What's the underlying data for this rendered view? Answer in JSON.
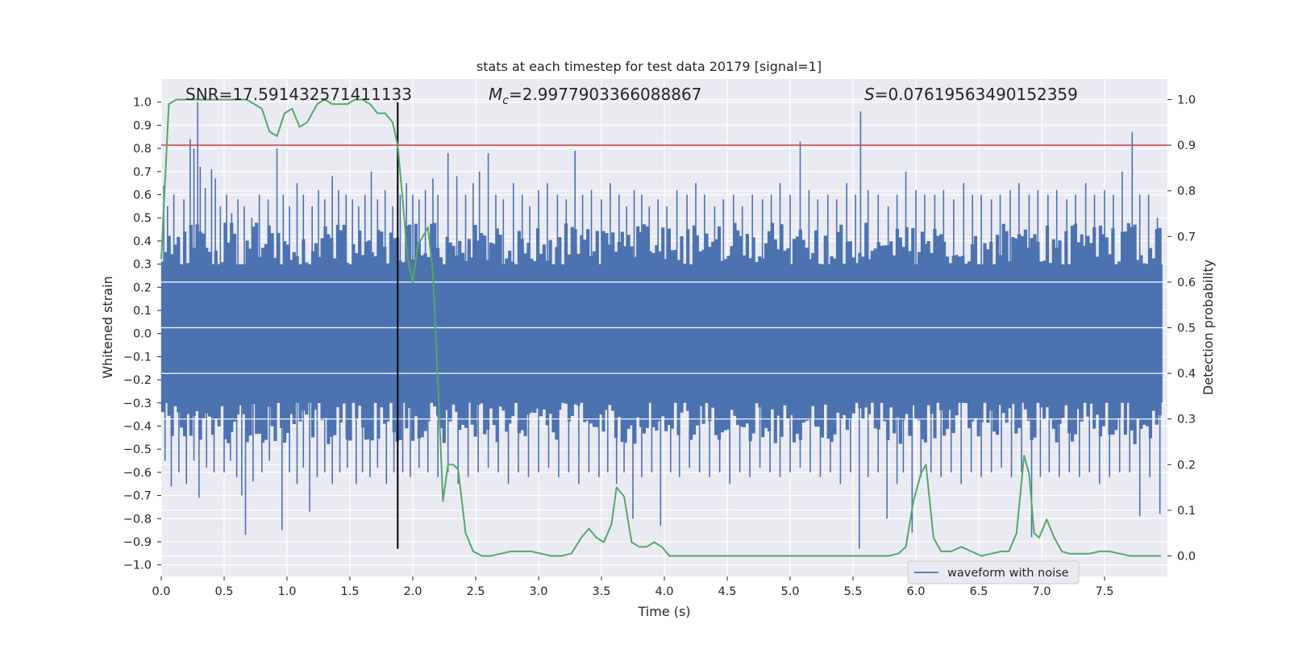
{
  "chart_data": {
    "type": "line",
    "title": "stats at each timestep for test data 20179 [signal=1]",
    "xlabel": "Time (s)",
    "ylabel": "Whitened strain",
    "y2label": "Detection probability",
    "xlim": [
      0,
      8
    ],
    "ylim": [
      -1.05,
      1.1
    ],
    "y2lim": [
      -0.045,
      1.045
    ],
    "x_ticks": [
      0.0,
      0.5,
      1.0,
      1.5,
      2.0,
      2.5,
      3.0,
      3.5,
      4.0,
      4.5,
      5.0,
      5.5,
      6.0,
      6.5,
      7.0,
      7.5
    ],
    "x_tick_labels": [
      "0.0",
      "0.5",
      "1.0",
      "1.5",
      "2.0",
      "2.5",
      "3.0",
      "3.5",
      "4.0",
      "4.5",
      "5.0",
      "5.5",
      "6.0",
      "6.5",
      "7.0",
      "7.5"
    ],
    "y_ticks": [
      -1.0,
      -0.9,
      -0.8,
      -0.7,
      -0.6,
      -0.5,
      -0.4,
      -0.3,
      -0.2,
      -0.1,
      0.0,
      0.1,
      0.2,
      0.3,
      0.4,
      0.5,
      0.6,
      0.7,
      0.8,
      0.9,
      1.0
    ],
    "y_tick_labels": [
      "−1.0",
      "−0.9",
      "−0.8",
      "−0.7",
      "−0.6",
      "−0.5",
      "−0.4",
      "−0.3",
      "−0.2",
      "−0.1",
      "0.0",
      "0.1",
      "0.2",
      "0.3",
      "0.4",
      "0.5",
      "0.6",
      "0.7",
      "0.8",
      "0.9",
      "1.0"
    ],
    "y2_ticks": [
      0.0,
      0.1,
      0.2,
      0.3,
      0.4,
      0.5,
      0.6,
      0.7,
      0.8,
      0.9,
      1.0
    ],
    "y2_tick_labels": [
      "0.0",
      "0.1",
      "0.2",
      "0.3",
      "0.4",
      "0.5",
      "0.6",
      "0.7",
      "0.8",
      "0.9",
      "1.0"
    ],
    "grid": true,
    "legend": {
      "placement": "lower-right",
      "entries": [
        "waveform with noise"
      ]
    },
    "annotations": {
      "snr": "SNR=17.591432571411133",
      "mc_symbol": "M",
      "mc_sub": "c",
      "mc_value": "=2.9977903366088867",
      "s_symbol": "S",
      "s_value": "=0.07619563490152359"
    },
    "threshold_line_y2": 0.9,
    "merger_time": 1.88,
    "merger_line_y": [
      -0.93,
      1.0
    ],
    "waveform": {
      "name": "waveform with noise",
      "color": "#4c72b0",
      "spikes_up": [
        [
          0.02,
          0.64
        ],
        [
          0.05,
          0.55
        ],
        [
          0.1,
          0.6
        ],
        [
          0.18,
          0.58
        ],
        [
          0.23,
          0.84
        ],
        [
          0.26,
          0.8
        ],
        [
          0.29,
          1.0
        ],
        [
          0.31,
          0.72
        ],
        [
          0.35,
          0.63
        ],
        [
          0.4,
          0.71
        ],
        [
          0.43,
          0.67
        ],
        [
          0.47,
          0.55
        ],
        [
          0.52,
          0.6
        ],
        [
          0.56,
          0.52
        ],
        [
          0.61,
          0.58
        ],
        [
          0.66,
          0.55
        ],
        [
          0.72,
          0.5
        ],
        [
          0.78,
          0.6
        ],
        [
          0.85,
          0.58
        ],
        [
          0.92,
          0.8
        ],
        [
          0.97,
          0.6
        ],
        [
          1.02,
          0.55
        ],
        [
          1.08,
          0.65
        ],
        [
          1.13,
          0.6
        ],
        [
          1.2,
          0.55
        ],
        [
          1.25,
          0.62
        ],
        [
          1.3,
          0.58
        ],
        [
          1.36,
          0.68
        ],
        [
          1.41,
          0.62
        ],
        [
          1.47,
          0.6
        ],
        [
          1.52,
          0.58
        ],
        [
          1.57,
          0.55
        ],
        [
          1.62,
          0.6
        ],
        [
          1.67,
          0.7
        ],
        [
          1.72,
          0.58
        ],
        [
          1.78,
          0.62
        ],
        [
          1.84,
          0.55
        ],
        [
          1.9,
          0.6
        ],
        [
          1.95,
          0.65
        ],
        [
          2.0,
          0.6
        ],
        [
          2.05,
          0.58
        ],
        [
          2.1,
          0.62
        ],
        [
          2.16,
          0.67
        ],
        [
          2.2,
          0.6
        ],
        [
          2.28,
          0.78
        ],
        [
          2.35,
          0.68
        ],
        [
          2.42,
          0.6
        ],
        [
          2.48,
          0.65
        ],
        [
          2.53,
          0.7
        ],
        [
          2.6,
          0.78
        ],
        [
          2.66,
          0.6
        ],
        [
          2.72,
          0.58
        ],
        [
          2.8,
          0.65
        ],
        [
          2.87,
          0.6
        ],
        [
          2.93,
          0.55
        ],
        [
          3.0,
          0.62
        ],
        [
          3.07,
          0.65
        ],
        [
          3.15,
          0.6
        ],
        [
          3.22,
          0.58
        ],
        [
          3.29,
          0.79
        ],
        [
          3.35,
          0.6
        ],
        [
          3.42,
          0.62
        ],
        [
          3.5,
          0.58
        ],
        [
          3.57,
          0.65
        ],
        [
          3.64,
          0.6
        ],
        [
          3.7,
          0.55
        ],
        [
          3.76,
          0.62
        ],
        [
          3.82,
          0.6
        ],
        [
          3.88,
          0.55
        ],
        [
          3.95,
          0.58
        ],
        [
          4.02,
          0.55
        ],
        [
          4.1,
          0.62
        ],
        [
          4.18,
          0.6
        ],
        [
          4.25,
          0.65
        ],
        [
          4.32,
          0.6
        ],
        [
          4.4,
          0.55
        ],
        [
          4.47,
          0.58
        ],
        [
          4.55,
          0.6
        ],
        [
          4.62,
          0.55
        ],
        [
          4.7,
          0.6
        ],
        [
          4.78,
          0.58
        ],
        [
          4.85,
          0.6
        ],
        [
          4.92,
          0.65
        ],
        [
          5.0,
          0.6
        ],
        [
          5.08,
          0.83
        ],
        [
          5.15,
          0.62
        ],
        [
          5.22,
          0.58
        ],
        [
          5.3,
          0.6
        ],
        [
          5.37,
          0.58
        ],
        [
          5.45,
          0.65
        ],
        [
          5.52,
          0.6
        ],
        [
          5.56,
          0.96
        ],
        [
          5.62,
          0.62
        ],
        [
          5.7,
          0.6
        ],
        [
          5.78,
          0.55
        ],
        [
          5.85,
          0.6
        ],
        [
          5.92,
          0.7
        ],
        [
          6.0,
          0.62
        ],
        [
          6.07,
          0.6
        ],
        [
          6.15,
          0.6
        ],
        [
          6.22,
          0.62
        ],
        [
          6.3,
          0.58
        ],
        [
          6.38,
          0.65
        ],
        [
          6.45,
          0.6
        ],
        [
          6.52,
          0.6
        ],
        [
          6.6,
          0.58
        ],
        [
          6.67,
          0.6
        ],
        [
          6.75,
          0.62
        ],
        [
          6.82,
          0.65
        ],
        [
          6.9,
          0.6
        ],
        [
          6.97,
          0.62
        ],
        [
          7.05,
          0.6
        ],
        [
          7.12,
          0.62
        ],
        [
          7.2,
          0.58
        ],
        [
          7.27,
          0.6
        ],
        [
          7.35,
          0.65
        ],
        [
          7.42,
          0.6
        ],
        [
          7.5,
          0.62
        ],
        [
          7.57,
          0.6
        ],
        [
          7.64,
          0.7
        ],
        [
          7.72,
          0.87
        ],
        [
          7.78,
          0.6
        ],
        [
          7.85,
          0.6
        ],
        [
          7.92,
          0.5
        ]
      ],
      "spikes_down": [
        [
          0.03,
          -0.55
        ],
        [
          0.08,
          -0.66
        ],
        [
          0.14,
          -0.6
        ],
        [
          0.2,
          -0.65
        ],
        [
          0.26,
          -0.55
        ],
        [
          0.3,
          -0.71
        ],
        [
          0.36,
          -0.58
        ],
        [
          0.42,
          -0.6
        ],
        [
          0.5,
          -0.6
        ],
        [
          0.55,
          -0.55
        ],
        [
          0.6,
          -0.62
        ],
        [
          0.64,
          -0.7
        ],
        [
          0.67,
          -0.87
        ],
        [
          0.73,
          -0.64
        ],
        [
          0.8,
          -0.6
        ],
        [
          0.86,
          -0.55
        ],
        [
          0.96,
          -0.85
        ],
        [
          1.02,
          -0.6
        ],
        [
          1.08,
          -0.65
        ],
        [
          1.13,
          -0.58
        ],
        [
          1.18,
          -0.77
        ],
        [
          1.24,
          -0.62
        ],
        [
          1.3,
          -0.6
        ],
        [
          1.36,
          -0.65
        ],
        [
          1.42,
          -0.6
        ],
        [
          1.48,
          -0.58
        ],
        [
          1.55,
          -0.65
        ],
        [
          1.6,
          -0.6
        ],
        [
          1.66,
          -0.62
        ],
        [
          1.72,
          -0.58
        ],
        [
          1.79,
          -0.65
        ],
        [
          1.85,
          -0.6
        ],
        [
          1.92,
          -0.6
        ],
        [
          1.98,
          -0.62
        ],
        [
          2.05,
          -0.58
        ],
        [
          2.12,
          -0.6
        ],
        [
          2.2,
          -0.62
        ],
        [
          2.28,
          -0.6
        ],
        [
          2.36,
          -0.65
        ],
        [
          2.44,
          -0.62
        ],
        [
          2.52,
          -0.6
        ],
        [
          2.6,
          -0.58
        ],
        [
          2.68,
          -0.6
        ],
        [
          2.76,
          -0.65
        ],
        [
          2.84,
          -0.6
        ],
        [
          2.92,
          -0.62
        ],
        [
          3.0,
          -0.6
        ],
        [
          3.08,
          -0.58
        ],
        [
          3.16,
          -0.62
        ],
        [
          3.24,
          -0.6
        ],
        [
          3.32,
          -0.65
        ],
        [
          3.4,
          -0.6
        ],
        [
          3.48,
          -0.62
        ],
        [
          3.55,
          -0.6
        ],
        [
          3.62,
          -0.65
        ],
        [
          3.68,
          -0.6
        ],
        [
          3.75,
          -0.8
        ],
        [
          3.82,
          -0.62
        ],
        [
          3.9,
          -0.6
        ],
        [
          3.97,
          -0.83
        ],
        [
          4.05,
          -0.6
        ],
        [
          4.12,
          -0.62
        ],
        [
          4.2,
          -0.58
        ],
        [
          4.28,
          -0.6
        ],
        [
          4.36,
          -0.62
        ],
        [
          4.44,
          -0.6
        ],
        [
          4.52,
          -0.65
        ],
        [
          4.6,
          -0.6
        ],
        [
          4.68,
          -0.62
        ],
        [
          4.76,
          -0.58
        ],
        [
          4.84,
          -0.6
        ],
        [
          4.92,
          -0.62
        ],
        [
          5.0,
          -0.6
        ],
        [
          5.08,
          -0.58
        ],
        [
          5.16,
          -0.6
        ],
        [
          5.24,
          -0.62
        ],
        [
          5.32,
          -0.6
        ],
        [
          5.4,
          -0.65
        ],
        [
          5.48,
          -0.6
        ],
        [
          5.55,
          -0.93
        ],
        [
          5.62,
          -0.62
        ],
        [
          5.7,
          -0.6
        ],
        [
          5.77,
          -0.8
        ],
        [
          5.85,
          -0.65
        ],
        [
          5.9,
          -0.6
        ],
        [
          5.97,
          -0.86
        ],
        [
          6.04,
          -0.62
        ],
        [
          6.12,
          -0.6
        ],
        [
          6.2,
          -0.62
        ],
        [
          6.28,
          -0.6
        ],
        [
          6.36,
          -0.65
        ],
        [
          6.44,
          -0.6
        ],
        [
          6.52,
          -0.62
        ],
        [
          6.6,
          -0.6
        ],
        [
          6.68,
          -0.58
        ],
        [
          6.76,
          -0.62
        ],
        [
          6.84,
          -0.6
        ],
        [
          6.92,
          -0.88
        ],
        [
          6.99,
          -0.62
        ],
        [
          7.06,
          -0.6
        ],
        [
          7.14,
          -0.62
        ],
        [
          7.22,
          -0.6
        ],
        [
          7.3,
          -0.62
        ],
        [
          7.38,
          -0.6
        ],
        [
          7.46,
          -0.65
        ],
        [
          7.54,
          -0.62
        ],
        [
          7.62,
          -0.6
        ],
        [
          7.7,
          -0.6
        ],
        [
          7.78,
          -0.79
        ],
        [
          7.86,
          -0.62
        ],
        [
          7.94,
          -0.78
        ]
      ]
    },
    "probability": {
      "color": "#55a868",
      "x": [
        0.0,
        0.06,
        0.12,
        0.2,
        0.28,
        0.36,
        0.44,
        0.52,
        0.6,
        0.68,
        0.74,
        0.8,
        0.86,
        0.92,
        0.98,
        1.04,
        1.1,
        1.16,
        1.24,
        1.3,
        1.36,
        1.42,
        1.48,
        1.54,
        1.6,
        1.66,
        1.72,
        1.78,
        1.84,
        1.88,
        1.92,
        1.96,
        2.0,
        2.04,
        2.08,
        2.12,
        2.16,
        2.2,
        2.24,
        2.28,
        2.32,
        2.36,
        2.42,
        2.48,
        2.55,
        2.62,
        2.7,
        2.78,
        2.86,
        2.94,
        3.02,
        3.1,
        3.18,
        3.26,
        3.34,
        3.4,
        3.46,
        3.52,
        3.58,
        3.62,
        3.68,
        3.74,
        3.8,
        3.86,
        3.92,
        3.98,
        4.04,
        4.12,
        4.2,
        4.3,
        4.4,
        4.5,
        4.6,
        4.7,
        4.8,
        4.9,
        5.0,
        5.1,
        5.2,
        5.3,
        5.4,
        5.5,
        5.6,
        5.7,
        5.78,
        5.86,
        5.92,
        5.98,
        6.04,
        6.08,
        6.14,
        6.2,
        6.28,
        6.36,
        6.44,
        6.52,
        6.6,
        6.68,
        6.74,
        6.8,
        6.86,
        6.9,
        6.94,
        6.98,
        7.04,
        7.1,
        7.16,
        7.22,
        7.3,
        7.38,
        7.46,
        7.54,
        7.62,
        7.7,
        7.8,
        7.9,
        7.95
      ],
      "y": [
        0.65,
        0.99,
        1.0,
        1.0,
        1.0,
        1.0,
        1.0,
        1.0,
        1.0,
        1.0,
        0.99,
        0.98,
        0.93,
        0.92,
        0.97,
        0.98,
        0.94,
        0.95,
        0.99,
        1.0,
        0.99,
        0.99,
        0.99,
        1.0,
        1.0,
        0.99,
        0.97,
        0.97,
        0.95,
        0.9,
        0.78,
        0.65,
        0.6,
        0.68,
        0.7,
        0.72,
        0.62,
        0.38,
        0.12,
        0.2,
        0.2,
        0.19,
        0.05,
        0.01,
        0.0,
        0.0,
        0.005,
        0.01,
        0.01,
        0.01,
        0.005,
        0.0,
        0.0,
        0.005,
        0.04,
        0.06,
        0.04,
        0.03,
        0.07,
        0.15,
        0.13,
        0.03,
        0.02,
        0.02,
        0.03,
        0.02,
        0.0,
        0.0,
        0.0,
        0.0,
        0.0,
        0.0,
        0.0,
        0.0,
        0.0,
        0.0,
        0.0,
        0.0,
        0.0,
        0.0,
        0.0,
        0.0,
        0.0,
        0.0,
        0.0,
        0.005,
        0.02,
        0.12,
        0.18,
        0.2,
        0.04,
        0.01,
        0.01,
        0.02,
        0.01,
        0.0,
        0.005,
        0.01,
        0.01,
        0.05,
        0.22,
        0.18,
        0.05,
        0.04,
        0.08,
        0.04,
        0.01,
        0.005,
        0.005,
        0.005,
        0.01,
        0.01,
        0.005,
        0.0,
        0.0,
        0.0,
        0.0
      ]
    }
  }
}
